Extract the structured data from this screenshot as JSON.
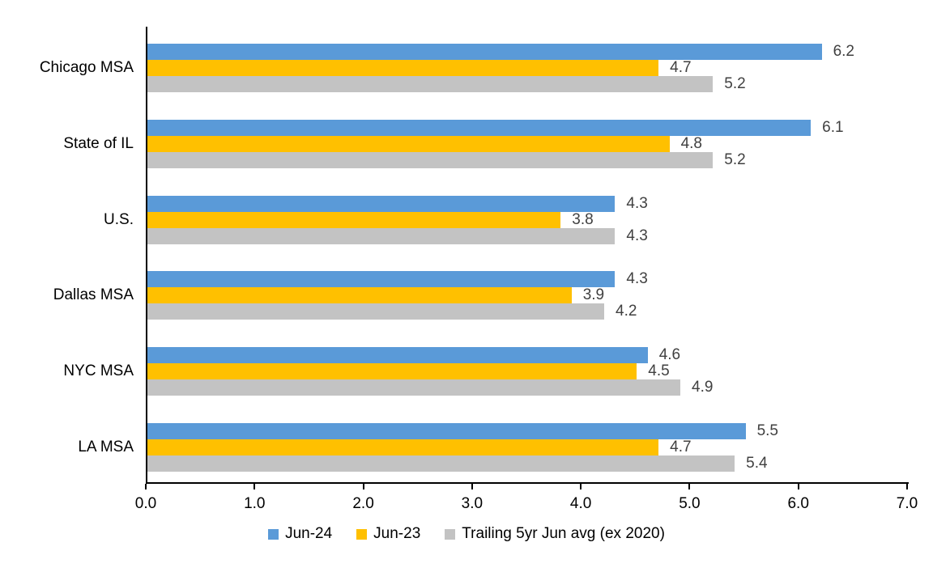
{
  "chart_data": {
    "type": "bar",
    "orientation": "horizontal",
    "title": "",
    "xlabel": "",
    "ylabel": "",
    "xlim": [
      0,
      7
    ],
    "x_ticks": [
      "0.0",
      "1.0",
      "2.0",
      "3.0",
      "4.0",
      "5.0",
      "6.0",
      "7.0"
    ],
    "grid": false,
    "data_labels": true,
    "data_label_decimals": 1,
    "legend_position": "bottom",
    "categories": [
      "Chicago MSA",
      "State of IL",
      "U.S.",
      "Dallas MSA",
      "NYC MSA",
      "LA MSA"
    ],
    "series": [
      {
        "name": "Jun-24",
        "color": "#5A9AD8",
        "values": [
          6.2,
          6.1,
          4.3,
          4.3,
          4.6,
          5.5
        ]
      },
      {
        "name": "Jun-23",
        "color": "#FFC000",
        "values": [
          4.7,
          4.8,
          3.8,
          3.9,
          4.5,
          4.7
        ]
      },
      {
        "name": "Trailing 5yr Jun avg (ex 2020)",
        "color": "#C3C3C3",
        "values": [
          5.2,
          5.2,
          4.3,
          4.2,
          4.9,
          5.4
        ]
      }
    ],
    "colors": {
      "axis": "#000000",
      "value_label": "#404040",
      "text": "#000000",
      "background": "#FFFFFF"
    }
  }
}
